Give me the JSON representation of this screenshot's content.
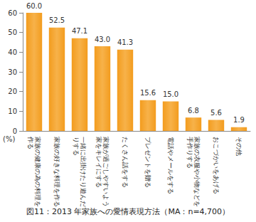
{
  "chart_data": {
    "type": "bar",
    "title": "図11：2013 年家族への愛情表現方法（MA：n=4,700）",
    "y_label": "(%)",
    "categories": [
      "家族の健康の為の料理を作る",
      "家族の好きな料理を作る",
      "一緒に出掛けたり遊んだりする",
      "家族が過ごしやすいよう家をキレイにする",
      "たくさん話をする",
      "プレゼントを贈る",
      "電話やメールをする",
      "家族の衣服や小物などを手作りする",
      "おこづかいをあげる",
      "その他"
    ],
    "values": [
      60.0,
      52.5,
      47.1,
      43.0,
      41.3,
      15.6,
      15.0,
      6.8,
      5.6,
      1.9
    ],
    "value_labels": [
      "60.0",
      "52.5",
      "47.1",
      "43.0",
      "41.3",
      "15.6",
      "15.0",
      "6.8",
      "5.6",
      "1.9"
    ],
    "color": "#f39c1e",
    "ylim": [
      0,
      60
    ],
    "yticks": [
      0,
      10,
      20,
      30,
      40,
      50,
      60
    ],
    "grid": false,
    "data_labels": true
  }
}
